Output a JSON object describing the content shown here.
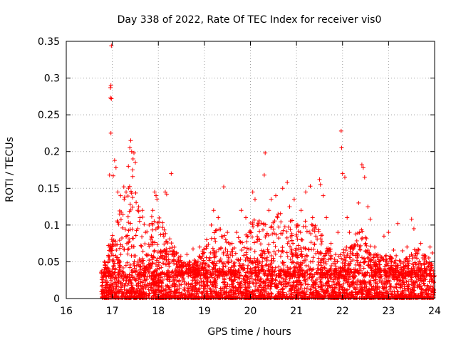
{
  "chart_data": {
    "type": "scatter",
    "title": "Day 338 of 2022, Rate Of TEC Index for receiver vis0",
    "xlabel": "GPS time / hours",
    "ylabel": "ROTI / TECUs",
    "xlim": [
      16,
      24
    ],
    "ylim": [
      0,
      0.35
    ],
    "xticks": [
      16,
      17,
      18,
      19,
      20,
      21,
      22,
      23,
      24
    ],
    "yticks": [
      0,
      0.05,
      0.1,
      0.15,
      0.2,
      0.25,
      0.3,
      0.35
    ],
    "ytick_labels": [
      "0",
      "0.05",
      "0.1",
      "0.15",
      "0.2",
      "0.25",
      "0.3",
      "0.35"
    ],
    "grid": true,
    "marker": "+",
    "color": "#ff0000",
    "series": [
      {
        "name": "ROTI",
        "points": [
          [
            16.98,
            0.344
          ],
          [
            16.97,
            0.29
          ],
          [
            16.96,
            0.287
          ],
          [
            16.96,
            0.273
          ],
          [
            16.98,
            0.272
          ],
          [
            16.97,
            0.225
          ],
          [
            16.94,
            0.168
          ],
          [
            17.05,
            0.188
          ],
          [
            17.08,
            0.178
          ],
          [
            17.02,
            0.167
          ],
          [
            17.12,
            0.145
          ],
          [
            17.18,
            0.14
          ],
          [
            17.25,
            0.152
          ],
          [
            17.3,
            0.145
          ],
          [
            17.38,
            0.205
          ],
          [
            17.4,
            0.215
          ],
          [
            17.42,
            0.2
          ],
          [
            17.45,
            0.19
          ],
          [
            17.47,
            0.198
          ],
          [
            17.5,
            0.185
          ],
          [
            17.35,
            0.18
          ],
          [
            17.44,
            0.175
          ],
          [
            17.55,
            0.12
          ],
          [
            17.6,
            0.11
          ],
          [
            17.65,
            0.12
          ],
          [
            17.72,
            0.09
          ],
          [
            17.8,
            0.1
          ],
          [
            17.88,
            0.12
          ],
          [
            17.92,
            0.145
          ],
          [
            17.95,
            0.14
          ],
          [
            17.97,
            0.135
          ],
          [
            17.85,
            0.085
          ],
          [
            18.15,
            0.145
          ],
          [
            18.18,
            0.142
          ],
          [
            18.28,
            0.17
          ],
          [
            18.05,
            0.065
          ],
          [
            18.3,
            0.065
          ],
          [
            18.4,
            0.05
          ],
          [
            18.5,
            0.045
          ],
          [
            18.62,
            0.06
          ],
          [
            18.75,
            0.04
          ],
          [
            18.9,
            0.07
          ],
          [
            19.05,
            0.08
          ],
          [
            19.15,
            0.1
          ],
          [
            19.2,
            0.12
          ],
          [
            19.3,
            0.11
          ],
          [
            19.42,
            0.152
          ],
          [
            19.5,
            0.09
          ],
          [
            19.6,
            0.075
          ],
          [
            19.7,
            0.09
          ],
          [
            19.8,
            0.12
          ],
          [
            19.9,
            0.11
          ],
          [
            20.0,
            0.09
          ],
          [
            20.05,
            0.145
          ],
          [
            20.1,
            0.135
          ],
          [
            20.2,
            0.08
          ],
          [
            20.32,
            0.198
          ],
          [
            20.3,
            0.168
          ],
          [
            20.4,
            0.12
          ],
          [
            20.45,
            0.135
          ],
          [
            20.55,
            0.14
          ],
          [
            20.6,
            0.115
          ],
          [
            20.7,
            0.15
          ],
          [
            20.8,
            0.158
          ],
          [
            20.85,
            0.125
          ],
          [
            20.95,
            0.135
          ],
          [
            21.0,
            0.1
          ],
          [
            21.1,
            0.12
          ],
          [
            21.2,
            0.145
          ],
          [
            21.3,
            0.153
          ],
          [
            21.35,
            0.11
          ],
          [
            21.4,
            0.095
          ],
          [
            21.5,
            0.162
          ],
          [
            21.52,
            0.155
          ],
          [
            21.58,
            0.14
          ],
          [
            21.65,
            0.11
          ],
          [
            21.75,
            0.075
          ],
          [
            21.85,
            0.06
          ],
          [
            21.9,
            0.09
          ],
          [
            21.97,
            0.228
          ],
          [
            21.98,
            0.205
          ],
          [
            22.0,
            0.17
          ],
          [
            22.05,
            0.165
          ],
          [
            22.1,
            0.11
          ],
          [
            22.15,
            0.09
          ],
          [
            22.25,
            0.07
          ],
          [
            22.35,
            0.13
          ],
          [
            22.42,
            0.182
          ],
          [
            22.45,
            0.178
          ],
          [
            22.48,
            0.165
          ],
          [
            22.55,
            0.125
          ],
          [
            22.6,
            0.108
          ],
          [
            22.7,
            0.07
          ],
          [
            22.8,
            0.05
          ],
          [
            22.9,
            0.085
          ],
          [
            23.0,
            0.09
          ],
          [
            23.1,
            0.045
          ],
          [
            23.2,
            0.102
          ],
          [
            23.3,
            0.065
          ],
          [
            23.4,
            0.07
          ],
          [
            23.5,
            0.108
          ],
          [
            23.55,
            0.095
          ],
          [
            23.6,
            0.065
          ],
          [
            23.7,
            0.075
          ],
          [
            23.8,
            0.055
          ],
          [
            23.9,
            0.07
          ],
          [
            23.95,
            0.062
          ]
        ]
      }
    ],
    "dense_band": {
      "x_range": [
        16.75,
        24
      ],
      "y_typical_max": 0.04,
      "description_note": "dense cloud of points near zero"
    }
  }
}
